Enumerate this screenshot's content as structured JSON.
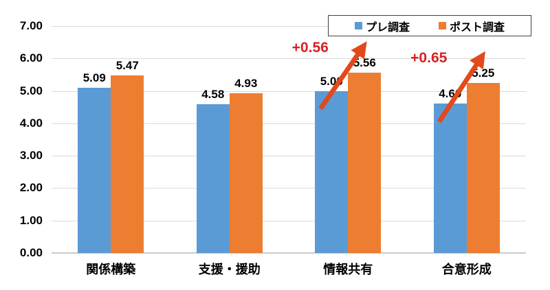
{
  "chart_data": {
    "type": "bar",
    "title": "",
    "categories": [
      "関係構築",
      "支援・援助",
      "情報共有",
      "合意形成"
    ],
    "series": [
      {
        "name": "プレ調査",
        "color": "#5B9BD5",
        "values": [
          5.09,
          4.58,
          5.0,
          4.6
        ]
      },
      {
        "name": "ポスト調査",
        "color": "#ED7D31",
        "values": [
          5.47,
          4.93,
          5.56,
          5.25
        ]
      }
    ],
    "ylim": [
      0,
      7
    ],
    "yticks": [
      "0.00",
      "1.00",
      "2.00",
      "3.00",
      "4.00",
      "5.00",
      "6.00",
      "7.00"
    ],
    "grid": true,
    "legend_position": "top-right",
    "value_label_decimals": 2,
    "annotations": [
      {
        "text": "+0.56",
        "category": "情報共有",
        "category_index": 2,
        "text_color": "#D92121",
        "arrow_color": "#E2491B"
      },
      {
        "text": "+0.65",
        "category": "合意形成",
        "category_index": 3,
        "text_color": "#D92121",
        "arrow_color": "#E2491B"
      }
    ]
  },
  "colors": {
    "background": "#FFFFFF",
    "gridline": "#D9D9D9",
    "axis_line": "#C9C9C9",
    "text": "#000000",
    "legend_border": "#404040"
  }
}
